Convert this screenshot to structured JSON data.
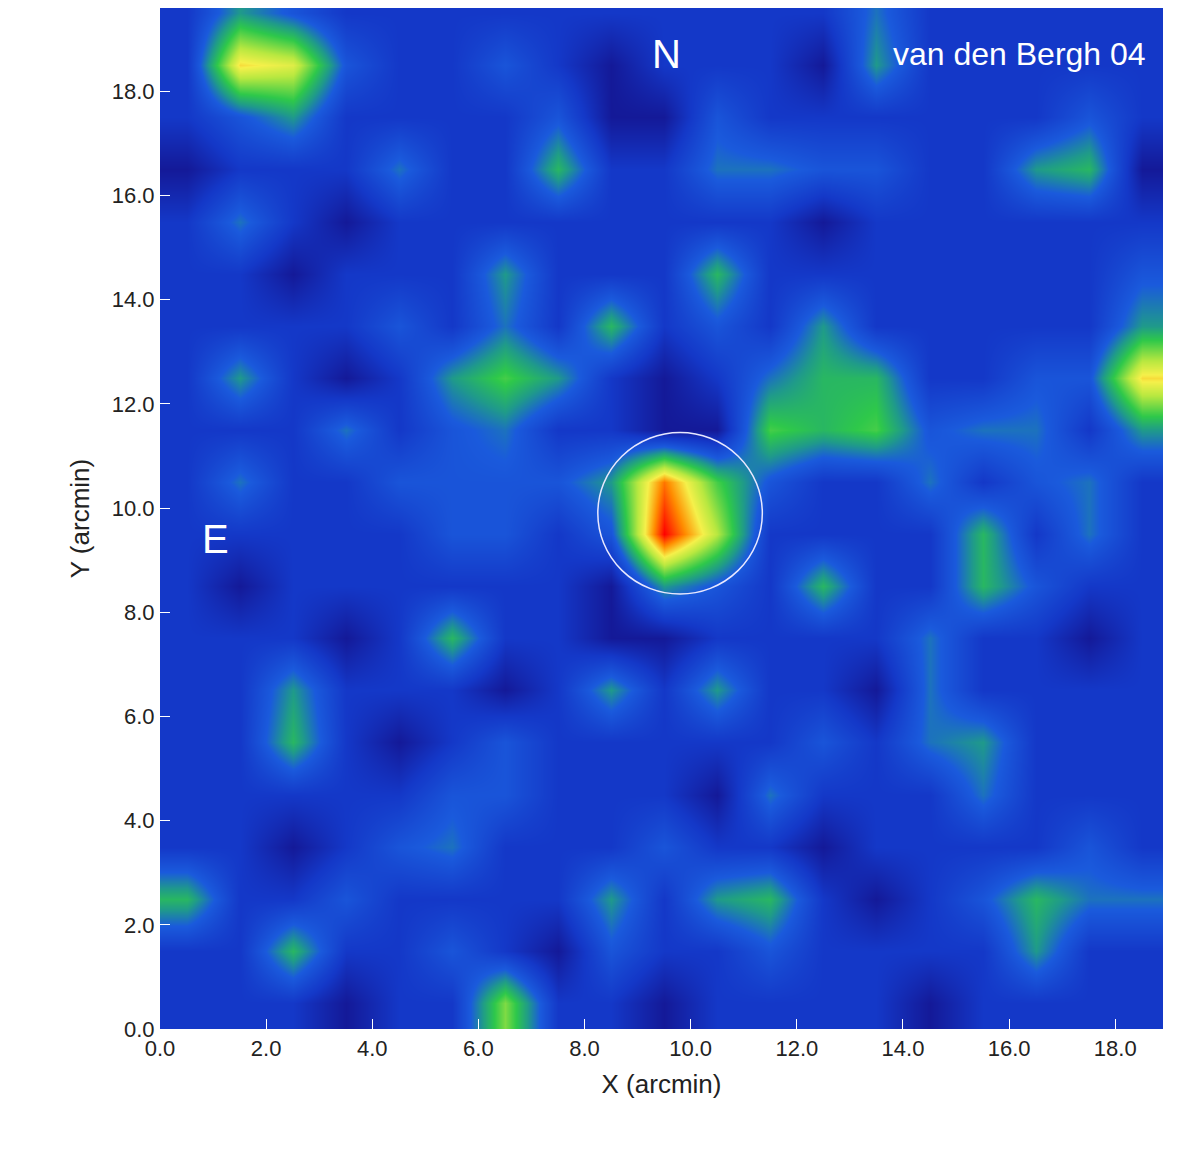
{
  "chart_data": {
    "type": "heatmap",
    "x_label": "X (arcmin)",
    "y_label": "Y (arcmin)",
    "x": [
      0.5,
      1.5,
      2.5,
      3.5,
      4.5,
      5.5,
      6.5,
      7.5,
      8.5,
      9.5,
      10.5,
      11.5,
      12.5,
      13.5,
      14.5,
      15.5,
      16.5,
      17.5,
      18.5
    ],
    "y": [
      0.5,
      1.5,
      2.5,
      3.5,
      4.5,
      5.5,
      6.5,
      7.5,
      8.5,
      9.5,
      10.5,
      11.5,
      12.5,
      13.5,
      14.5,
      15.5,
      16.5,
      17.5,
      18.5,
      19.5
    ],
    "z": [
      [
        3,
        3,
        3,
        2,
        3,
        3,
        6.5,
        3,
        3,
        2,
        3,
        3,
        3,
        3,
        2,
        3,
        3,
        3,
        3
      ],
      [
        3,
        3,
        5.5,
        3,
        3,
        4,
        3,
        2,
        4,
        3,
        3,
        4,
        3,
        3,
        3,
        3,
        5,
        3,
        3
      ],
      [
        5.5,
        3,
        3,
        4,
        3,
        3,
        3,
        3,
        5,
        3,
        5,
        5.5,
        3,
        2,
        3,
        4,
        5.5,
        4.5,
        4.5
      ],
      [
        3,
        3,
        2,
        3,
        4,
        4.5,
        3,
        3,
        3,
        4,
        3,
        3,
        2,
        3,
        3,
        3,
        3,
        4,
        3
      ],
      [
        3,
        3,
        3,
        3,
        3,
        4,
        4,
        3,
        3,
        3,
        2,
        4.5,
        3,
        3,
        3,
        4.5,
        3,
        3,
        3
      ],
      [
        3,
        3,
        5.5,
        3,
        2,
        3,
        4,
        3,
        3,
        3,
        3,
        3,
        4,
        3,
        4.5,
        5,
        3,
        3,
        3
      ],
      [
        3,
        3,
        5,
        3,
        3,
        3,
        2,
        3,
        5,
        3,
        5,
        3,
        3,
        2,
        4.5,
        3,
        3,
        3,
        3
      ],
      [
        3,
        3,
        3,
        2,
        3,
        5.5,
        3,
        3,
        2,
        2,
        3,
        3,
        3,
        3,
        4.5,
        3,
        3,
        2,
        3
      ],
      [
        3,
        2,
        3,
        3,
        3,
        3,
        3,
        3,
        2,
        5,
        4,
        3,
        5.5,
        3,
        3,
        5.5,
        4,
        3,
        3
      ],
      [
        3,
        3,
        3,
        3,
        3,
        4,
        4,
        3,
        4,
        10,
        7,
        3,
        3,
        3,
        3,
        5.5,
        3,
        4.5,
        3
      ],
      [
        3,
        4.5,
        3,
        3,
        4,
        4,
        4,
        4,
        5,
        9,
        6,
        4,
        3,
        3,
        4.5,
        3,
        4,
        4.5,
        3
      ],
      [
        3,
        3,
        3,
        4.5,
        3,
        4,
        4.5,
        3,
        3,
        2,
        2,
        6,
        5.5,
        6,
        4,
        4.5,
        4.5,
        3,
        5
      ],
      [
        3,
        5,
        3,
        2,
        3,
        5,
        6,
        5,
        3,
        2,
        3,
        4.5,
        5.5,
        5.5,
        3,
        3,
        4,
        4,
        8
      ],
      [
        3,
        3,
        3,
        3,
        4,
        3,
        4.5,
        3,
        5.5,
        3,
        4,
        3,
        5,
        3,
        3,
        3,
        3,
        3,
        5
      ],
      [
        3,
        3,
        2,
        3,
        3,
        3,
        5,
        3,
        3,
        3,
        5.5,
        3,
        3,
        3,
        3,
        3,
        3,
        3,
        4
      ],
      [
        3,
        4.5,
        3,
        2,
        3,
        3,
        3,
        3,
        3,
        3,
        3,
        3,
        2,
        3,
        3,
        3,
        3,
        3,
        3
      ],
      [
        2,
        3,
        3,
        3,
        4.5,
        3,
        3,
        5.5,
        3,
        3,
        4.5,
        4.5,
        4,
        4,
        3,
        3,
        5,
        5.5,
        2
      ],
      [
        3,
        4,
        5,
        3,
        3,
        3,
        3,
        4,
        2,
        2,
        4,
        3,
        3,
        3,
        3,
        3,
        3,
        4,
        3
      ],
      [
        3,
        8,
        7.5,
        4,
        3,
        3,
        4,
        3,
        2,
        3,
        3,
        3,
        2,
        5,
        3,
        3,
        3,
        3,
        3
      ],
      [
        3,
        5,
        4,
        3,
        3,
        3,
        3,
        3,
        3,
        3,
        3,
        3,
        3,
        4.5,
        3,
        3,
        3,
        3,
        3
      ]
    ],
    "zlim": [
      0,
      10
    ],
    "xlim": [
      0,
      18.9
    ],
    "ylim": [
      0,
      19.6
    ],
    "xticks": [
      {
        "value": 0,
        "label": "0.0"
      },
      {
        "value": 2,
        "label": "2.0"
      },
      {
        "value": 4,
        "label": "4.0"
      },
      {
        "value": 6,
        "label": "6.0"
      },
      {
        "value": 8,
        "label": "8.0"
      },
      {
        "value": 10,
        "label": "10.0"
      },
      {
        "value": 12,
        "label": "12.0"
      },
      {
        "value": 14,
        "label": "14.0"
      },
      {
        "value": 16,
        "label": "16.0"
      },
      {
        "value": 18,
        "label": "18.0"
      }
    ],
    "yticks": [
      {
        "value": 0,
        "label": "0.0"
      },
      {
        "value": 2,
        "label": "2.0"
      },
      {
        "value": 4,
        "label": "4.0"
      },
      {
        "value": 6,
        "label": "6.0"
      },
      {
        "value": 8,
        "label": "8.0"
      },
      {
        "value": 10,
        "label": "10.0"
      },
      {
        "value": 12,
        "label": "12.0"
      },
      {
        "value": 14,
        "label": "14.0"
      },
      {
        "value": 16,
        "label": "16.0"
      },
      {
        "value": 18,
        "label": "18.0"
      }
    ],
    "annotations": [
      {
        "text": "N"
      },
      {
        "text": "E"
      },
      {
        "text": "van den Bergh 04"
      }
    ],
    "circle": {
      "x": 9.8,
      "y": 9.9,
      "r": 1.55
    }
  }
}
